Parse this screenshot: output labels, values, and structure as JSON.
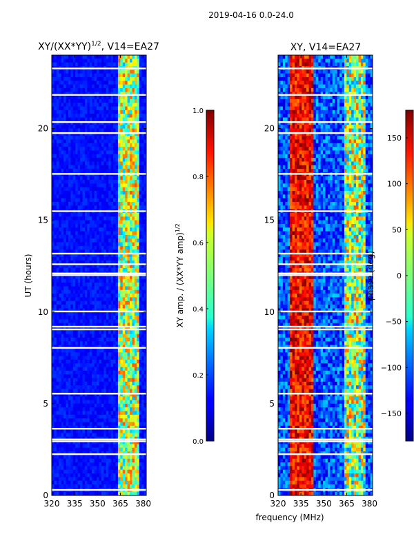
{
  "suptitle": "2019-04-16 0.0-24.0",
  "colormap": "jet",
  "chart_data": [
    {
      "type": "heatmap",
      "title": "XY/(XX*YY)",
      "title_superscript": "1/2",
      "title_suffix": ", V14=EA27",
      "xlabel": "",
      "ylabel": "UT (hours)",
      "xlim": [
        320,
        382
      ],
      "ylim": [
        0,
        24
      ],
      "xticks": [
        320,
        335,
        350,
        365,
        380
      ],
      "yticks": [
        0,
        5,
        10,
        15,
        20
      ],
      "colorbar": {
        "label": "XY amp. / (XX*YY amp)",
        "label_superscript": "1/2",
        "range": [
          0.0,
          1.0
        ],
        "ticks": [
          "0.0",
          "0.2",
          "0.4",
          "0.6",
          "0.8",
          "1.0"
        ]
      }
    },
    {
      "type": "heatmap",
      "title": "XY, V14=EA27",
      "xlabel": "frequency (MHz)",
      "ylabel": "",
      "xlim": [
        320,
        382
      ],
      "ylim": [
        0,
        24
      ],
      "xticks": [
        320,
        335,
        350,
        365,
        380
      ],
      "yticks": [
        0,
        5,
        10,
        15,
        20
      ],
      "colorbar": {
        "label": "phase (deg)",
        "range": [
          -180,
          180
        ],
        "ticks": [
          "150",
          "100",
          "50",
          "0",
          "−50",
          "−100",
          "−150"
        ]
      }
    }
  ]
}
